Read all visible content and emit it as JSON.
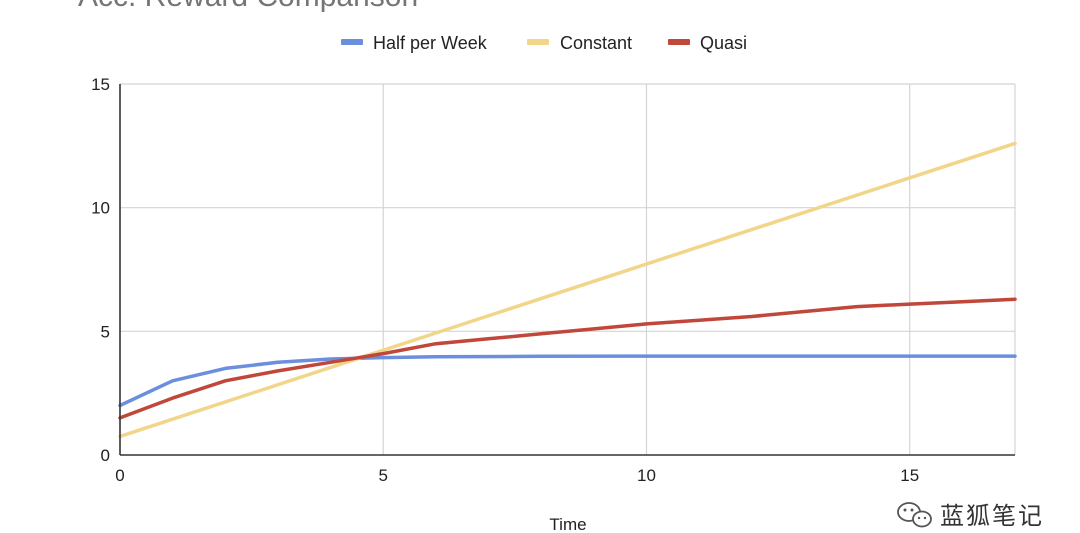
{
  "chart_data": {
    "type": "line",
    "title": "Acc. Reward Comparison",
    "xlabel": "Time",
    "ylabel": "",
    "xlim": [
      0,
      17
    ],
    "ylim": [
      0,
      15
    ],
    "x_ticks": [
      0,
      5,
      10,
      15
    ],
    "y_ticks": [
      0,
      5,
      10,
      15
    ],
    "grid": true,
    "legend_position": "top-center",
    "series": [
      {
        "name": "Half per Week",
        "color": "#6b8fdc",
        "x": [
          0,
          1,
          2,
          3,
          4,
          5,
          6,
          8,
          10,
          12,
          14,
          15,
          16,
          17
        ],
        "y": [
          2.0,
          3.0,
          3.5,
          3.75,
          3.88,
          3.94,
          3.97,
          3.99,
          4.0,
          4.0,
          4.0,
          4.0,
          4.0,
          4.0
        ]
      },
      {
        "name": "Constant",
        "color": "#f1d68a",
        "x": [
          0,
          17
        ],
        "y": [
          0.75,
          12.6
        ]
      },
      {
        "name": "Quasi",
        "color": "#c0473a",
        "x": [
          0,
          1,
          2,
          3,
          4,
          5,
          6,
          7,
          8,
          9,
          10,
          11,
          12,
          13,
          14,
          15,
          16,
          17
        ],
        "y": [
          1.5,
          2.3,
          3.0,
          3.4,
          3.75,
          4.1,
          4.5,
          4.7,
          4.9,
          5.1,
          5.3,
          5.45,
          5.6,
          5.8,
          6.0,
          6.1,
          6.2,
          6.3
        ]
      }
    ]
  },
  "watermark": {
    "icon": "wechat-icon",
    "text": "蓝狐笔记"
  }
}
